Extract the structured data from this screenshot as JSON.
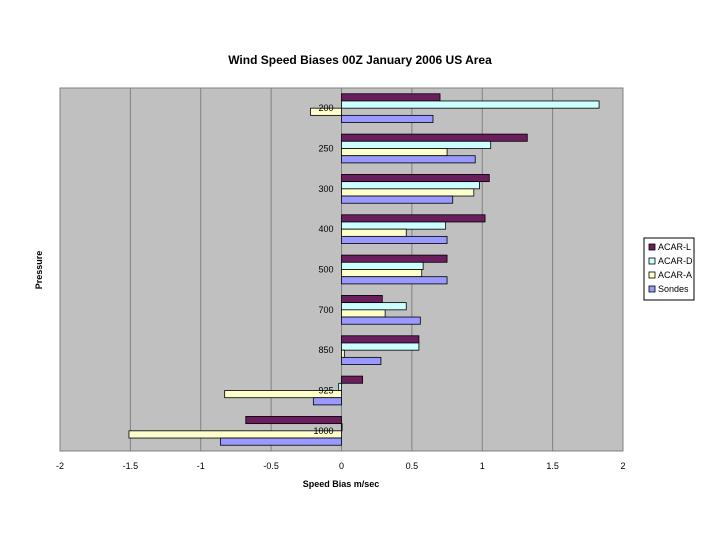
{
  "chart_data": {
    "type": "bar",
    "orientation": "horizontal",
    "title": "Wind Speed Biases 00Z January 2006 US Area",
    "xlabel": "Speed Bias m/sec",
    "ylabel": "Pressure",
    "xlim": [
      -2,
      2
    ],
    "xticks": [
      -2,
      -1.5,
      -1,
      -0.5,
      0,
      0.5,
      1,
      1.5,
      2
    ],
    "grid": "vertical",
    "legend": "right",
    "categories": [
      "200",
      "250",
      "300",
      "400",
      "500",
      "700",
      "850",
      "925",
      "1000"
    ],
    "series": [
      {
        "name": "ACAR-L",
        "color": "#6b1e5e",
        "values": [
          0.7,
          1.32,
          1.05,
          1.02,
          0.75,
          0.29,
          0.55,
          0.15,
          -0.68
        ]
      },
      {
        "name": "ACAR-D",
        "color": "#ccffff",
        "values": [
          1.83,
          1.06,
          0.98,
          0.74,
          0.58,
          0.46,
          0.55,
          -0.02,
          0.0
        ]
      },
      {
        "name": "ACAR-A",
        "color": "#ffffcc",
        "values": [
          -0.22,
          0.75,
          0.94,
          0.46,
          0.57,
          0.31,
          0.02,
          -0.83,
          -1.51
        ]
      },
      {
        "name": "Sondes",
        "color": "#9999ff",
        "values": [
          0.65,
          0.95,
          0.79,
          0.75,
          0.75,
          0.56,
          0.28,
          -0.2,
          -0.86
        ]
      }
    ]
  }
}
